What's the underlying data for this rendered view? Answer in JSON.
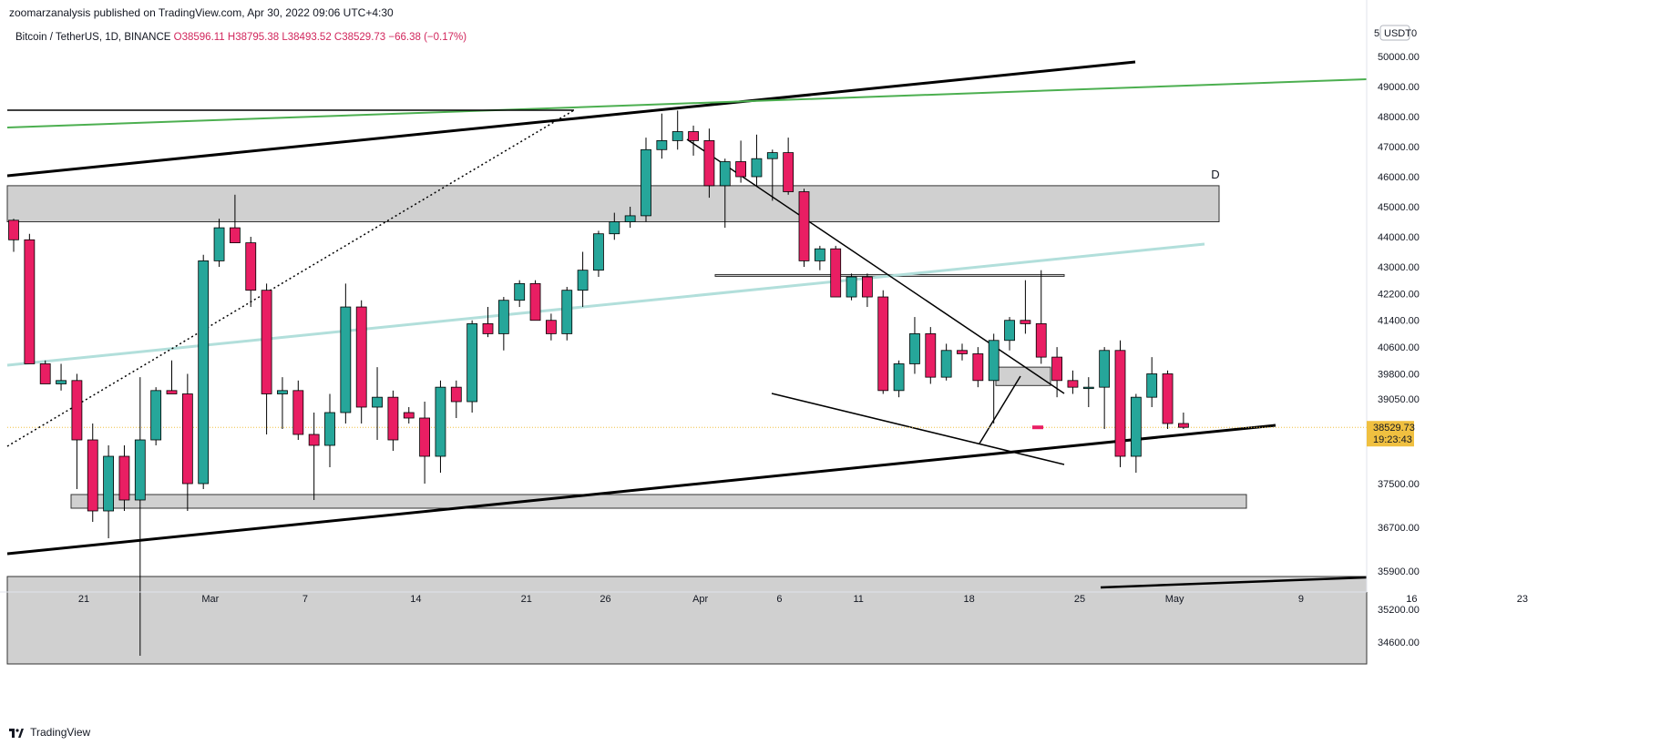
{
  "header": {
    "published_text": "zoomarzanalysis published on TradingView.com, Apr 30, 2022 09:06 UTC+4:30"
  },
  "legend": {
    "symbol": "Bitcoin / TetherUS, 1D, BINANCE",
    "ohlc": "O38596.11  H38795.38  L38493.52  C38529.73  −66.38 (−0.17%)"
  },
  "axis": {
    "currency_badge": "USDT",
    "currency_prefix": "5",
    "currency_suffix": "0",
    "price_ticks": [
      50000,
      49000,
      48000,
      47000,
      46000,
      45000,
      44000,
      43000,
      42200,
      41400,
      40600,
      39800,
      39050,
      37500,
      36700,
      35900,
      35200,
      34600
    ],
    "date_ticks": [
      {
        "label": "21",
        "day": 0
      },
      {
        "label": "Mar",
        "day": 8
      },
      {
        "label": "7",
        "day": 14
      },
      {
        "label": "14",
        "day": 21
      },
      {
        "label": "21",
        "day": 28
      },
      {
        "label": "26",
        "day": 33
      },
      {
        "label": "Apr",
        "day": 39
      },
      {
        "label": "6",
        "day": 44
      },
      {
        "label": "11",
        "day": 49
      },
      {
        "label": "18",
        "day": 56
      },
      {
        "label": "25",
        "day": 63
      },
      {
        "label": "May",
        "day": 69
      },
      {
        "label": "9",
        "day": 77
      },
      {
        "label": "16",
        "day": 84
      },
      {
        "label": "23",
        "day": 91
      }
    ]
  },
  "price_badge": {
    "price": "38529.73",
    "countdown": "19:23:43"
  },
  "annotations": {
    "wave_label": "D"
  },
  "footer": {
    "brand": "TradingView"
  },
  "colors": {
    "up": "#26a69a",
    "down": "#e91e63",
    "zone_fill": "#d0d0d0",
    "trend_black": "#000000",
    "trend_green": "#4caf50",
    "trend_teal": "#b2dfdb",
    "price_line": "#f0c040"
  },
  "chart_data": {
    "type": "candlestick",
    "title": "Bitcoin / TetherUS, 1D, BINANCE",
    "last_price": 38529.73,
    "x_ticks": [
      "21",
      "Mar",
      "7",
      "14",
      "21",
      "26",
      "Apr",
      "6",
      "11",
      "18",
      "25",
      "May",
      "9",
      "16",
      "23"
    ],
    "candles": [
      {
        "o": 44550,
        "h": 44600,
        "l": 43500,
        "c": 43900
      },
      {
        "o": 43900,
        "h": 44100,
        "l": 40200,
        "c": 40100
      },
      {
        "o": 40100,
        "h": 40200,
        "l": 39500,
        "c": 39500
      },
      {
        "o": 39500,
        "h": 40100,
        "l": 39300,
        "c": 39600
      },
      {
        "o": 39600,
        "h": 39800,
        "l": 37400,
        "c": 38300
      },
      {
        "o": 38300,
        "h": 38600,
        "l": 36800,
        "c": 37000
      },
      {
        "o": 37000,
        "h": 38200,
        "l": 36500,
        "c": 38000
      },
      {
        "o": 38000,
        "h": 38200,
        "l": 37000,
        "c": 37200
      },
      {
        "o": 37200,
        "h": 39700,
        "l": 34350,
        "c": 38300
      },
      {
        "o": 38300,
        "h": 39400,
        "l": 38200,
        "c": 39300
      },
      {
        "o": 39300,
        "h": 40200,
        "l": 39200,
        "c": 39200
      },
      {
        "o": 39200,
        "h": 39800,
        "l": 37000,
        "c": 37500
      },
      {
        "o": 37500,
        "h": 43400,
        "l": 37400,
        "c": 43200
      },
      {
        "o": 43200,
        "h": 44600,
        "l": 43000,
        "c": 44300
      },
      {
        "o": 44300,
        "h": 45400,
        "l": 43800,
        "c": 43800
      },
      {
        "o": 43800,
        "h": 44000,
        "l": 41800,
        "c": 42300
      },
      {
        "o": 42300,
        "h": 42500,
        "l": 38400,
        "c": 39200
      },
      {
        "o": 39200,
        "h": 39700,
        "l": 38500,
        "c": 39300
      },
      {
        "o": 39300,
        "h": 39600,
        "l": 38300,
        "c": 38400
      },
      {
        "o": 38400,
        "h": 38800,
        "l": 37200,
        "c": 38200
      },
      {
        "o": 38200,
        "h": 39200,
        "l": 37800,
        "c": 38800
      },
      {
        "o": 38800,
        "h": 42500,
        "l": 38600,
        "c": 41800
      },
      {
        "o": 41800,
        "h": 42000,
        "l": 38600,
        "c": 38900
      },
      {
        "o": 38900,
        "h": 40000,
        "l": 38300,
        "c": 39100
      },
      {
        "o": 39100,
        "h": 39300,
        "l": 38100,
        "c": 38300
      },
      {
        "o": 38800,
        "h": 38900,
        "l": 38600,
        "c": 38700
      },
      {
        "o": 38700,
        "h": 39000,
        "l": 37500,
        "c": 38000
      },
      {
        "o": 38000,
        "h": 39600,
        "l": 37700,
        "c": 39400
      },
      {
        "o": 39400,
        "h": 39600,
        "l": 38700,
        "c": 39000
      },
      {
        "o": 39000,
        "h": 41400,
        "l": 38800,
        "c": 41300
      },
      {
        "o": 41300,
        "h": 41800,
        "l": 40900,
        "c": 41000
      },
      {
        "o": 41000,
        "h": 42100,
        "l": 40500,
        "c": 42000
      },
      {
        "o": 42000,
        "h": 42600,
        "l": 41800,
        "c": 42500
      },
      {
        "o": 42500,
        "h": 42600,
        "l": 41400,
        "c": 41400
      },
      {
        "o": 41400,
        "h": 41600,
        "l": 40800,
        "c": 41000
      },
      {
        "o": 41000,
        "h": 42400,
        "l": 40800,
        "c": 42300
      },
      {
        "o": 42300,
        "h": 43500,
        "l": 41800,
        "c": 42900
      },
      {
        "o": 42900,
        "h": 44200,
        "l": 42700,
        "c": 44100
      },
      {
        "o": 44100,
        "h": 44800,
        "l": 43900,
        "c": 44500
      },
      {
        "o": 44500,
        "h": 45000,
        "l": 44300,
        "c": 44700
      },
      {
        "o": 44700,
        "h": 47300,
        "l": 44500,
        "c": 46900
      },
      {
        "o": 46900,
        "h": 48100,
        "l": 46600,
        "c": 47200
      },
      {
        "o": 47200,
        "h": 48200,
        "l": 46900,
        "c": 47500
      },
      {
        "o": 47500,
        "h": 47700,
        "l": 46700,
        "c": 47200
      },
      {
        "o": 47200,
        "h": 47600,
        "l": 45300,
        "c": 45700
      },
      {
        "o": 45700,
        "h": 46600,
        "l": 44300,
        "c": 46500
      },
      {
        "o": 46500,
        "h": 47200,
        "l": 45800,
        "c": 46000
      },
      {
        "o": 46000,
        "h": 47400,
        "l": 45700,
        "c": 46600
      },
      {
        "o": 46600,
        "h": 46900,
        "l": 45200,
        "c": 46800
      },
      {
        "o": 46800,
        "h": 47300,
        "l": 45400,
        "c": 45500
      },
      {
        "o": 45500,
        "h": 45600,
        "l": 43000,
        "c": 43200
      },
      {
        "o": 43200,
        "h": 43700,
        "l": 42900,
        "c": 43600
      },
      {
        "o": 43600,
        "h": 43700,
        "l": 42100,
        "c": 42100
      },
      {
        "o": 42100,
        "h": 42800,
        "l": 42000,
        "c": 42700
      },
      {
        "o": 42700,
        "h": 42800,
        "l": 41800,
        "c": 42100
      },
      {
        "o": 42100,
        "h": 42300,
        "l": 39200,
        "c": 39300
      },
      {
        "o": 39300,
        "h": 40200,
        "l": 39100,
        "c": 40100
      },
      {
        "o": 40100,
        "h": 41500,
        "l": 39800,
        "c": 41000
      },
      {
        "o": 41000,
        "h": 41200,
        "l": 39500,
        "c": 39700
      },
      {
        "o": 39700,
        "h": 40700,
        "l": 39600,
        "c": 40500
      },
      {
        "o": 40500,
        "h": 40700,
        "l": 40200,
        "c": 40400
      },
      {
        "o": 40400,
        "h": 40600,
        "l": 39400,
        "c": 39600
      },
      {
        "o": 39600,
        "h": 41000,
        "l": 38600,
        "c": 40800
      },
      {
        "o": 40800,
        "h": 41500,
        "l": 40500,
        "c": 41400
      },
      {
        "o": 41400,
        "h": 42600,
        "l": 41000,
        "c": 41300
      },
      {
        "o": 41300,
        "h": 42900,
        "l": 40100,
        "c": 40300
      },
      {
        "o": 40300,
        "h": 40600,
        "l": 39100,
        "c": 39600
      },
      {
        "o": 39600,
        "h": 39900,
        "l": 39200,
        "c": 39400
      },
      {
        "o": 39400,
        "h": 39700,
        "l": 38900,
        "c": 39400
      },
      {
        "o": 39400,
        "h": 40600,
        "l": 38500,
        "c": 40500
      },
      {
        "o": 40500,
        "h": 40800,
        "l": 37800,
        "c": 38000
      },
      {
        "o": 38000,
        "h": 39200,
        "l": 37700,
        "c": 39100
      },
      {
        "o": 39100,
        "h": 40300,
        "l": 38900,
        "c": 39800
      },
      {
        "o": 39800,
        "h": 39900,
        "l": 38500,
        "c": 38600
      },
      {
        "o": 38600,
        "h": 38800,
        "l": 38500,
        "c": 38530
      }
    ],
    "zones": [
      {
        "from": 44500,
        "to": 45700
      },
      {
        "from": 37050,
        "to": 37300
      },
      {
        "from": 34200,
        "to": 35800
      },
      {
        "from": 39450,
        "to": 40000
      },
      {
        "from": 42720,
        "to": 42770
      }
    ],
    "y_ticks": [
      50000,
      49000,
      48000,
      47000,
      46000,
      45000,
      44000,
      43000,
      42200,
      41400,
      40600,
      39800,
      39050,
      37500,
      36700,
      35900,
      35200,
      34600
    ]
  }
}
